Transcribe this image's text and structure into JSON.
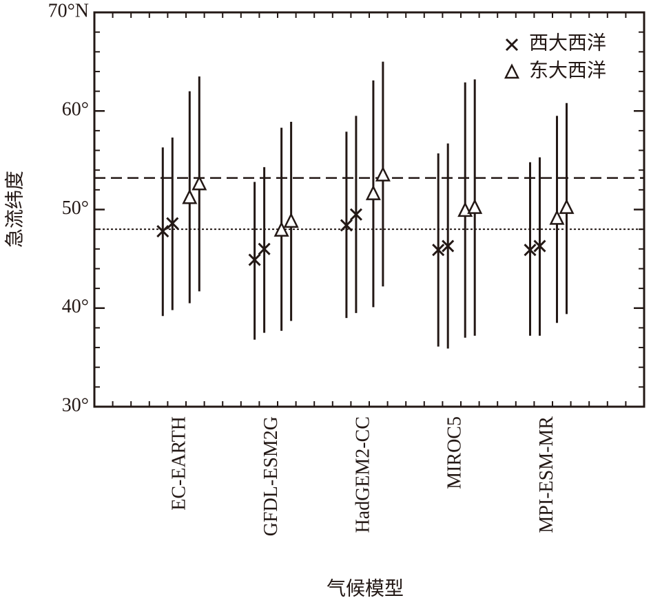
{
  "chart_data": {
    "type": "errorbar",
    "x_label": "气候模型",
    "y_label": "急流纬度",
    "categories": [
      "EC-EARTH",
      "GFDL-ESM2G",
      "HadGEM2-CC",
      "MIROC5",
      "MPI-ESM-MR"
    ],
    "ylim": [
      30,
      70
    ],
    "yticks": [
      {
        "value": 30,
        "label": "30°"
      },
      {
        "value": 40,
        "label": "40°"
      },
      {
        "value": 50,
        "label": "50°"
      },
      {
        "value": 60,
        "label": "60°"
      },
      {
        "value": 70,
        "label": "70°N"
      }
    ],
    "series": [
      {
        "name": "西大西洋",
        "marker": "x",
        "color": "#231815",
        "values": [
          [
            47.8,
            48.6
          ],
          [
            44.9,
            46.0
          ],
          [
            48.4,
            49.5
          ],
          [
            45.9,
            46.3
          ],
          [
            45.9,
            46.3
          ]
        ],
        "lows": [
          [
            39.2,
            39.8
          ],
          [
            36.8,
            37.5
          ],
          [
            39.0,
            39.5
          ],
          [
            36.1,
            35.9
          ],
          [
            37.2,
            37.2
          ]
        ],
        "highs": [
          [
            56.3,
            57.3
          ],
          [
            52.8,
            54.3
          ],
          [
            57.9,
            59.5
          ],
          [
            55.7,
            56.7
          ],
          [
            54.8,
            55.3
          ]
        ]
      },
      {
        "name": "东大西洋",
        "marker": "triangle",
        "color": "#231815",
        "values": [
          [
            51.2,
            52.6
          ],
          [
            47.9,
            48.8
          ],
          [
            51.6,
            53.5
          ],
          [
            49.9,
            50.2
          ],
          [
            49.1,
            50.2
          ]
        ],
        "lows": [
          [
            40.5,
            41.7
          ],
          [
            37.7,
            38.7
          ],
          [
            40.1,
            42.2
          ],
          [
            37.0,
            37.2
          ],
          [
            38.5,
            39.4
          ]
        ],
        "highs": [
          [
            62.0,
            63.5
          ],
          [
            58.3,
            58.9
          ],
          [
            63.1,
            65.0
          ],
          [
            62.9,
            63.2
          ],
          [
            59.5,
            60.8
          ]
        ]
      }
    ],
    "hlines": [
      {
        "value": 53.2,
        "style": "dashed"
      },
      {
        "value": 48.0,
        "style": "dotted"
      }
    ],
    "legend": "upper right"
  }
}
